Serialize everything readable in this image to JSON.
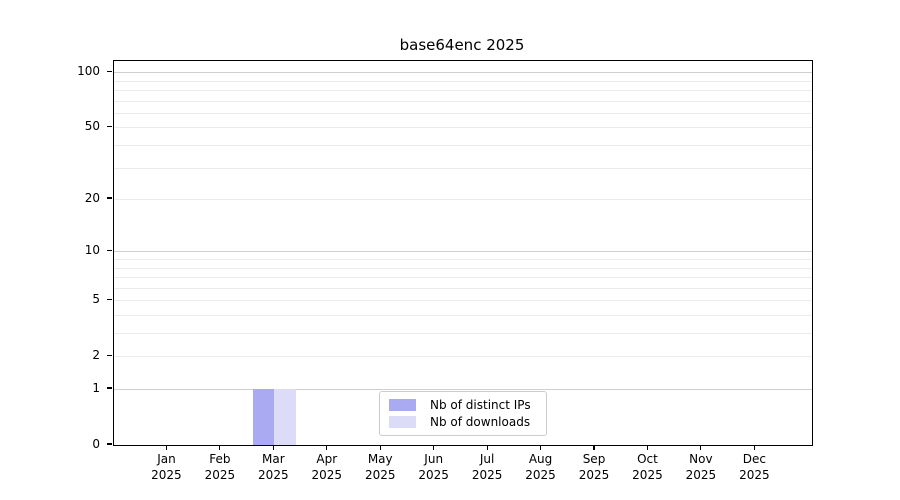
{
  "chart_data": {
    "type": "bar",
    "title": "base64enc 2025",
    "categories": [
      {
        "month": "Jan",
        "year": "2025"
      },
      {
        "month": "Feb",
        "year": "2025"
      },
      {
        "month": "Mar",
        "year": "2025"
      },
      {
        "month": "Apr",
        "year": "2025"
      },
      {
        "month": "May",
        "year": "2025"
      },
      {
        "month": "Jun",
        "year": "2025"
      },
      {
        "month": "Jul",
        "year": "2025"
      },
      {
        "month": "Aug",
        "year": "2025"
      },
      {
        "month": "Sep",
        "year": "2025"
      },
      {
        "month": "Oct",
        "year": "2025"
      },
      {
        "month": "Nov",
        "year": "2025"
      },
      {
        "month": "Dec",
        "year": "2025"
      }
    ],
    "series": [
      {
        "name": "Nb of distinct IPs",
        "color": "#aaaaf2",
        "values": [
          0,
          0,
          1,
          0,
          0,
          0,
          0,
          0,
          0,
          0,
          0,
          0
        ]
      },
      {
        "name": "Nb of downloads",
        "color": "#dcdcf8",
        "values": [
          0,
          0,
          1,
          0,
          0,
          0,
          0,
          0,
          0,
          0,
          0,
          0
        ]
      }
    ],
    "xlabel": "",
    "ylabel": "",
    "y_scale": "log10(1+y)",
    "ylim": [
      0,
      115
    ],
    "y_ticks": [
      0,
      1,
      2,
      5,
      10,
      20,
      50,
      100
    ],
    "y_major_grid": [
      1,
      10,
      100
    ],
    "y_minor_grid": [
      2,
      3,
      4,
      5,
      6,
      7,
      8,
      9,
      20,
      30,
      40,
      50,
      60,
      70,
      80,
      90
    ],
    "grid": true,
    "legend_position": "lower center inside"
  }
}
